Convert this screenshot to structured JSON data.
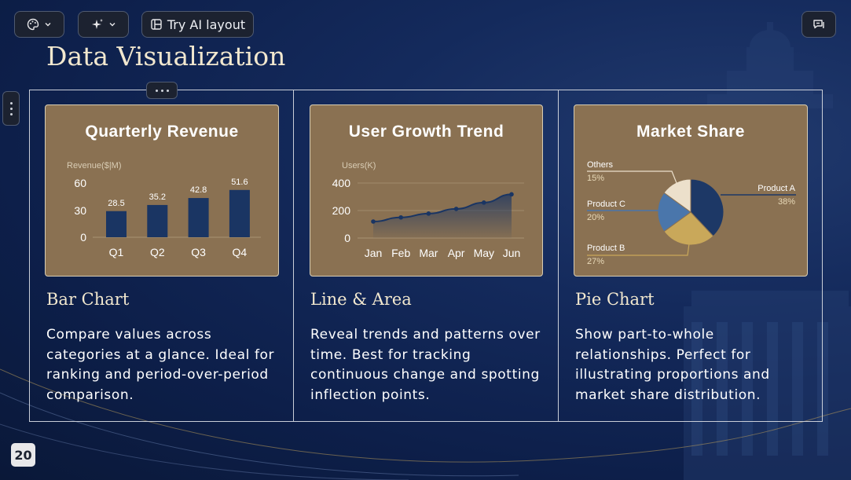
{
  "toolbar": {
    "theme_icon": "palette-icon",
    "ai_icon": "sparkle-icon",
    "try_ai_label": "Try AI layout",
    "layout_icon": "layout-icon",
    "comment_icon": "comment-icon"
  },
  "slide": {
    "title": "Data Visualization",
    "page_number": "20"
  },
  "sections": [
    {
      "title": "Bar Chart",
      "description": "Compare values across categories at a glance. Ideal for ranking and period-over-period comparison."
    },
    {
      "title": "Line & Area",
      "description": "Reveal trends and patterns over time. Best for tracking continuous change and spotting inflection points."
    },
    {
      "title": "Pie Chart",
      "description": "Show part-to-whole relationships. Perfect for illustrating proportions and market share distribution."
    }
  ],
  "colors": {
    "card_bg": "#8a7152",
    "series_navy": "#1a3563",
    "pie_navy": "#1d3866",
    "pie_gold": "#c9a85a",
    "pie_blue": "#4a76ab",
    "pie_cream": "#ece0cb"
  },
  "chart_data": [
    {
      "type": "bar",
      "title": "Quarterly Revenue",
      "ylabel": "Revenue($|M)",
      "categories": [
        "Q1",
        "Q2",
        "Q3",
        "Q4"
      ],
      "values": [
        28.5,
        35.2,
        42.8,
        51.6
      ],
      "data_labels": [
        "28.5",
        "35.2",
        "42.8",
        "51.6"
      ],
      "yticks": [
        "0",
        "30",
        "60"
      ],
      "ylim": [
        0,
        60
      ],
      "grid": false
    },
    {
      "type": "area",
      "title": "User Growth Trend",
      "ylabel": "Users(K)",
      "categories": [
        "Jan",
        "Feb",
        "Mar",
        "Apr",
        "May",
        "Jun"
      ],
      "values": [
        120,
        150,
        178,
        212,
        258,
        318
      ],
      "yticks": [
        "0",
        "200",
        "400"
      ],
      "ylim": [
        0,
        400
      ],
      "grid": true
    },
    {
      "type": "pie",
      "title": "Market Share",
      "slices": [
        {
          "label": "Product A",
          "pct": "38%",
          "value": 38,
          "color": "#1d3866"
        },
        {
          "label": "Product B",
          "pct": "27%",
          "value": 27,
          "color": "#c9a85a"
        },
        {
          "label": "Product C",
          "pct": "20%",
          "value": 20,
          "color": "#4a76ab"
        },
        {
          "label": "Others",
          "pct": "15%",
          "value": 15,
          "color": "#ece0cb"
        }
      ]
    }
  ]
}
